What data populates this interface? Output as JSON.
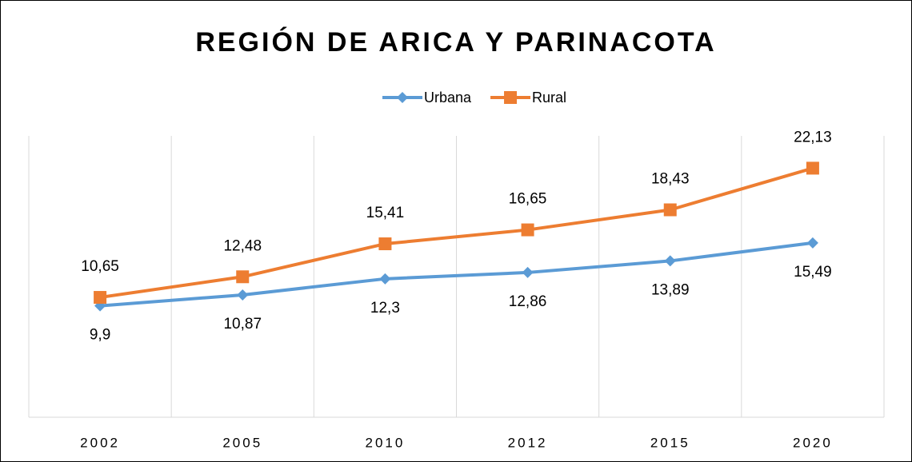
{
  "chart_data": {
    "type": "line",
    "title": "REGIÓN DE ARICA Y PARINACOTA",
    "categories": [
      "2002",
      "2005",
      "2010",
      "2012",
      "2015",
      "2020"
    ],
    "series": [
      {
        "name": "Urbana",
        "color": "#5b9bd5",
        "marker": "diamond",
        "label_position": "below",
        "values": [
          9.9,
          10.87,
          12.3,
          12.86,
          13.89,
          15.49
        ],
        "value_labels": [
          "9,9",
          "10,87",
          "12,3",
          "12,86",
          "13,89",
          "15,49"
        ]
      },
      {
        "name": "Rural",
        "color": "#ed7d31",
        "marker": "square",
        "label_position": "above",
        "values": [
          10.65,
          12.48,
          15.41,
          16.65,
          18.43,
          22.13
        ],
        "value_labels": [
          "10,65",
          "12,48",
          "15,41",
          "16,65",
          "18,43",
          "22,13"
        ]
      }
    ],
    "ylim": [
      0,
      25
    ],
    "grid": "vertical",
    "legend": "top"
  }
}
